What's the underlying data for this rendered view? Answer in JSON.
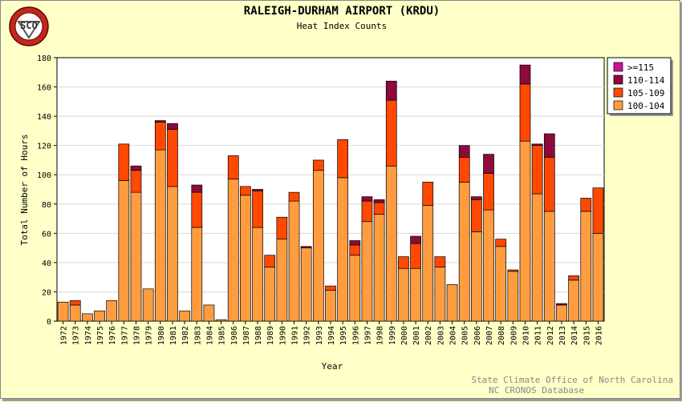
{
  "logo": {
    "text": "SCO",
    "ring_text": "STATE CLIMATE OFFICE OF NORTH CAROLINA"
  },
  "chart_data": {
    "type": "bar",
    "stacked": true,
    "title": "RALEIGH-DURHAM AIRPORT (KRDU)",
    "subtitle": "Heat Index Counts",
    "xlabel": "Year",
    "ylabel": "Total Number of Hours",
    "ylim": [
      0,
      180
    ],
    "yticks": [
      0,
      20,
      40,
      60,
      80,
      100,
      120,
      140,
      160,
      180
    ],
    "grid": true,
    "legend_position": "top-right",
    "categories": [
      "1972",
      "1973",
      "1974",
      "1975",
      "1976",
      "1977",
      "1978",
      "1979",
      "1980",
      "1981",
      "1982",
      "1983",
      "1984",
      "1985",
      "1986",
      "1987",
      "1988",
      "1989",
      "1990",
      "1991",
      "1992",
      "1993",
      "1994",
      "1995",
      "1996",
      "1997",
      "1998",
      "1999",
      "2000",
      "2001",
      "2002",
      "2003",
      "2004",
      "2005",
      "2006",
      "2007",
      "2008",
      "2009",
      "2010",
      "2011",
      "2012",
      "2013",
      "2014",
      "2015",
      "2016"
    ],
    "series": [
      {
        "name": "100-104",
        "color": "#ff9c40",
        "values": [
          13,
          11,
          5,
          7,
          14,
          96,
          88,
          22,
          117,
          92,
          7,
          64,
          11,
          1,
          97,
          86,
          64,
          37,
          56,
          82,
          50,
          103,
          21,
          98,
          45,
          68,
          73,
          106,
          36,
          36,
          79,
          37,
          25,
          95,
          61,
          76,
          51,
          34,
          123,
          87,
          75,
          11,
          28,
          75,
          60
        ]
      },
      {
        "name": "105-109",
        "color": "#ff4800",
        "values": [
          0,
          3,
          0,
          0,
          0,
          25,
          15,
          0,
          19,
          39,
          0,
          24,
          0,
          0,
          16,
          6,
          25,
          8,
          15,
          6,
          0,
          7,
          3,
          26,
          7,
          14,
          8,
          45,
          8,
          17,
          16,
          7,
          0,
          17,
          22,
          25,
          5,
          1,
          39,
          33,
          37,
          0,
          3,
          9,
          31
        ]
      },
      {
        "name": "110-114",
        "color": "#8c0a3c",
        "values": [
          0,
          0,
          0,
          0,
          0,
          0,
          3,
          0,
          1,
          4,
          0,
          5,
          0,
          0,
          0,
          0,
          1,
          0,
          0,
          0,
          1,
          0,
          0,
          0,
          3,
          3,
          2,
          13,
          0,
          5,
          0,
          0,
          0,
          8,
          2,
          13,
          0,
          0,
          13,
          1,
          16,
          1,
          0,
          0,
          0
        ]
      },
      {
        "name": ">=115",
        "color": "#d0109a",
        "values": [
          0,
          0,
          0,
          0,
          0,
          0,
          0,
          0,
          0,
          0,
          0,
          0,
          0,
          0,
          0,
          0,
          0,
          0,
          0,
          0,
          0,
          0,
          0,
          0,
          0,
          0,
          0,
          0,
          0,
          0,
          0,
          0,
          0,
          0,
          0,
          0,
          0,
          0,
          0,
          0,
          0,
          0,
          0,
          0,
          0
        ]
      }
    ]
  },
  "credits": [
    "State Climate Office of North Carolina",
    "NC CRONOS Database"
  ]
}
